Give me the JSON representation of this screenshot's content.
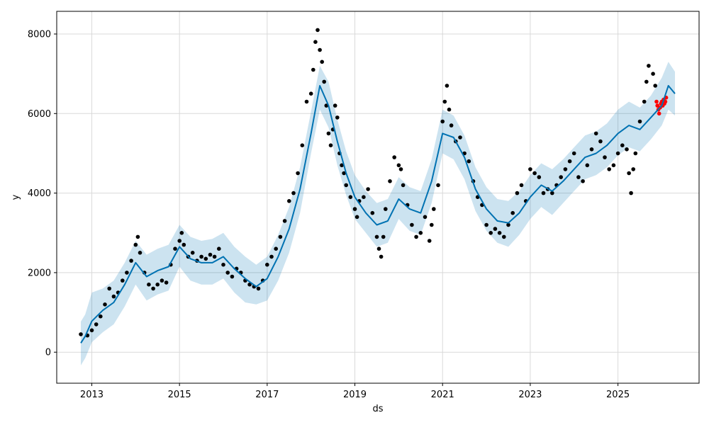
{
  "chart_data": {
    "type": "line",
    "title": "",
    "xlabel": "ds",
    "ylabel": "y",
    "xlim": [
      2012.2,
      2026.85
    ],
    "ylim": [
      -780,
      8570
    ],
    "grid": true,
    "x_ticks": [
      {
        "value": 2013,
        "label": "2013"
      },
      {
        "value": 2015,
        "label": "2015"
      },
      {
        "value": 2017,
        "label": "2017"
      },
      {
        "value": 2019,
        "label": "2019"
      },
      {
        "value": 2021,
        "label": "2021"
      },
      {
        "value": 2023,
        "label": "2023"
      },
      {
        "value": 2025,
        "label": "2025"
      }
    ],
    "y_ticks": [
      {
        "value": 0,
        "label": "0"
      },
      {
        "value": 2000,
        "label": "2000"
      },
      {
        "value": 4000,
        "label": "4000"
      },
      {
        "value": 6000,
        "label": "6000"
      },
      {
        "value": 8000,
        "label": "8000"
      }
    ],
    "colors": {
      "forecast_line": "#0072B2",
      "interval_fill": "#0072B2",
      "observed": "#000000",
      "highlight": "#ff0000",
      "grid": "#d9d9d9",
      "axes": "#000000"
    },
    "forecast": {
      "x": [
        2012.75,
        2012.85,
        2013.0,
        2013.25,
        2013.5,
        2013.75,
        2014.0,
        2014.25,
        2014.5,
        2014.75,
        2015.0,
        2015.25,
        2015.5,
        2015.75,
        2016.0,
        2016.25,
        2016.5,
        2016.75,
        2017.0,
        2017.25,
        2017.5,
        2017.75,
        2018.0,
        2018.2,
        2018.4,
        2018.6,
        2018.8,
        2019.0,
        2019.25,
        2019.5,
        2019.75,
        2020.0,
        2020.25,
        2020.5,
        2020.75,
        2021.0,
        2021.25,
        2021.5,
        2021.75,
        2022.0,
        2022.25,
        2022.5,
        2022.75,
        2023.0,
        2023.25,
        2023.5,
        2023.75,
        2024.0,
        2024.25,
        2024.5,
        2024.75,
        2025.0,
        2025.25,
        2025.5,
        2025.75,
        2026.0,
        2026.15,
        2026.3
      ],
      "yhat": [
        230,
        400,
        780,
        1050,
        1250,
        1700,
        2250,
        1900,
        2050,
        2150,
        2650,
        2350,
        2250,
        2250,
        2400,
        2100,
        1850,
        1650,
        1850,
        2400,
        3100,
        4100,
        5500,
        6700,
        6200,
        5300,
        4500,
        3900,
        3500,
        3200,
        3300,
        3850,
        3600,
        3500,
        4300,
        5500,
        5400,
        4900,
        4100,
        3600,
        3300,
        3250,
        3500,
        3900,
        4200,
        4050,
        4300,
        4600,
        4900,
        5000,
        5200,
        5500,
        5700,
        5600,
        5900,
        6200,
        6700,
        6500
      ],
      "lower": [
        -330,
        -150,
        250,
        500,
        700,
        1150,
        1700,
        1300,
        1450,
        1550,
        2150,
        1800,
        1700,
        1700,
        1850,
        1500,
        1250,
        1200,
        1300,
        1800,
        2500,
        3500,
        5000,
        6100,
        5650,
        4700,
        3950,
        3350,
        3000,
        2650,
        2750,
        3350,
        3050,
        2950,
        3750,
        5000,
        4850,
        4350,
        3550,
        3050,
        2750,
        2650,
        2950,
        3350,
        3650,
        3450,
        3750,
        4050,
        4350,
        4450,
        4650,
        4950,
        5150,
        5050,
        5350,
        5700,
        6100,
        5950
      ],
      "upper": [
        770,
        950,
        1500,
        1600,
        1800,
        2250,
        2800,
        2450,
        2600,
        2700,
        3200,
        2900,
        2800,
        2850,
        3000,
        2650,
        2400,
        2200,
        2400,
        2950,
        3650,
        4650,
        6050,
        7200,
        6800,
        5850,
        5050,
        4450,
        4050,
        3750,
        3850,
        4400,
        4150,
        4050,
        4850,
        6100,
        5950,
        5450,
        4650,
        4150,
        3850,
        3800,
        4050,
        4450,
        4750,
        4600,
        4850,
        5150,
        5450,
        5550,
        5750,
        6100,
        6300,
        6150,
        6450,
        6900,
        7300,
        7050
      ]
    },
    "observed": {
      "x": [
        2012.75,
        2012.9,
        2013.0,
        2013.1,
        2013.2,
        2013.3,
        2013.4,
        2013.5,
        2013.6,
        2013.7,
        2013.8,
        2013.9,
        2014.0,
        2014.05,
        2014.1,
        2014.2,
        2014.3,
        2014.4,
        2014.5,
        2014.6,
        2014.7,
        2014.8,
        2014.9,
        2015.0,
        2015.05,
        2015.1,
        2015.2,
        2015.3,
        2015.4,
        2015.5,
        2015.6,
        2015.7,
        2015.8,
        2015.9,
        2016.0,
        2016.1,
        2016.2,
        2016.3,
        2016.4,
        2016.5,
        2016.6,
        2016.7,
        2016.8,
        2016.9,
        2017.0,
        2017.1,
        2017.2,
        2017.3,
        2017.4,
        2017.5,
        2017.6,
        2017.7,
        2017.8,
        2017.9,
        2018.0,
        2018.05,
        2018.1,
        2018.15,
        2018.2,
        2018.25,
        2018.3,
        2018.35,
        2018.4,
        2018.45,
        2018.5,
        2018.55,
        2018.6,
        2018.65,
        2018.7,
        2018.75,
        2018.8,
        2018.9,
        2019.0,
        2019.05,
        2019.1,
        2019.2,
        2019.3,
        2019.4,
        2019.5,
        2019.55,
        2019.6,
        2019.65,
        2019.7,
        2019.8,
        2019.9,
        2020.0,
        2020.05,
        2020.1,
        2020.2,
        2020.3,
        2020.4,
        2020.5,
        2020.6,
        2020.7,
        2020.75,
        2020.8,
        2020.9,
        2021.0,
        2021.05,
        2021.1,
        2021.15,
        2021.2,
        2021.3,
        2021.4,
        2021.5,
        2021.6,
        2021.7,
        2021.8,
        2021.9,
        2022.0,
        2022.1,
        2022.2,
        2022.3,
        2022.4,
        2022.5,
        2022.6,
        2022.7,
        2022.8,
        2022.9,
        2023.0,
        2023.1,
        2023.2,
        2023.3,
        2023.4,
        2023.5,
        2023.6,
        2023.7,
        2023.8,
        2023.9,
        2024.0,
        2024.1,
        2024.2,
        2024.3,
        2024.4,
        2024.5,
        2024.6,
        2024.7,
        2024.8,
        2024.9,
        2025.0,
        2025.1,
        2025.2,
        2025.25,
        2025.3,
        2025.35,
        2025.4,
        2025.5,
        2025.6,
        2025.65,
        2025.7,
        2025.8,
        2025.85
      ],
      "y": [
        450,
        420,
        550,
        700,
        900,
        1200,
        1600,
        1400,
        1500,
        1800,
        2000,
        2300,
        2700,
        2900,
        2500,
        2000,
        1700,
        1600,
        1700,
        1800,
        1750,
        2200,
        2600,
        2800,
        3000,
        2700,
        2400,
        2500,
        2300,
        2400,
        2350,
        2450,
        2400,
        2600,
        2200,
        2000,
        1900,
        2100,
        2000,
        1800,
        1700,
        1650,
        1600,
        1800,
        2200,
        2400,
        2600,
        2900,
        3300,
        3800,
        4000,
        4500,
        5200,
        6300,
        6500,
        7100,
        7800,
        8100,
        7600,
        7300,
        6800,
        6200,
        5500,
        5200,
        5600,
        6200,
        5900,
        5000,
        4700,
        4500,
        4200,
        3900,
        3600,
        3400,
        3800,
        3900,
        4100,
        3500,
        2900,
        2600,
        2400,
        2900,
        3600,
        4300,
        4900,
        4700,
        4600,
        4200,
        3700,
        3200,
        2900,
        3000,
        3400,
        2800,
        3200,
        3600,
        4200,
        5800,
        6300,
        6700,
        6100,
        5700,
        5300,
        5400,
        5000,
        4800,
        4300,
        3900,
        3700,
        3200,
        3000,
        3100,
        3000,
        2900,
        3200,
        3500,
        4000,
        4200,
        3800,
        4600,
        4500,
        4400,
        4000,
        4100,
        4000,
        4200,
        4400,
        4600,
        4800,
        5000,
        4400,
        4300,
        4700,
        5100,
        5500,
        5300,
        4900,
        4600,
        4700,
        5000,
        5200,
        5100,
        4500,
        4000,
        4600,
        5000,
        5800,
        6300,
        6800,
        7200,
        7000,
        6700
      ],
      "radius": 2.8
    },
    "highlight": {
      "x": [
        2025.88,
        2025.9,
        2025.92,
        2025.94,
        2025.96,
        2025.98,
        2026.0,
        2026.02,
        2026.04,
        2026.06,
        2026.08,
        2026.1
      ],
      "y": [
        6300,
        6200,
        6100,
        6000,
        6150,
        6250,
        6300,
        6200,
        6350,
        6250,
        6300,
        6400
      ],
      "radius": 2.8
    }
  }
}
